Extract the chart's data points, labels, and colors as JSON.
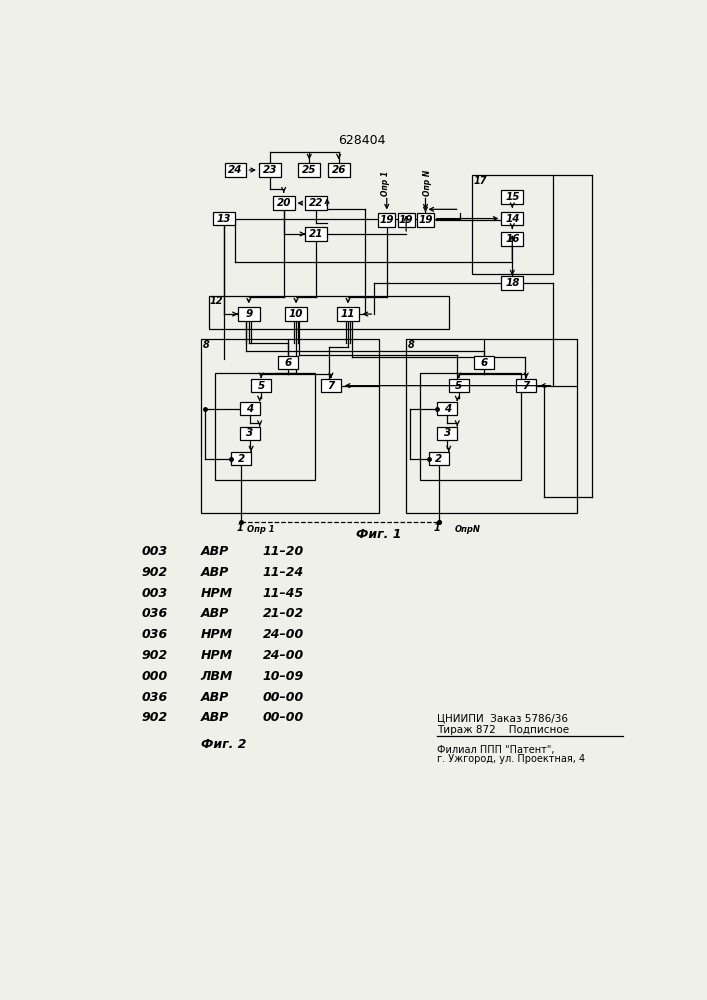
{
  "title": "628404",
  "bg": "#f0f0eb",
  "fig1_label": "Фиг. 1",
  "fig2_label": "Фиг. 2",
  "opr1_label": "Опр 1",
  "oprN_label": "Опр N",
  "dir1_label": "Опр 1",
  "dirN_label": "ОпрN",
  "node1_label": "1",
  "bottom_rows": [
    [
      "003",
      "АВР",
      "11–20"
    ],
    [
      "902",
      "АВР",
      "11–24"
    ],
    [
      "003",
      "НРМ",
      "11–45"
    ],
    [
      "036",
      "АВР",
      "21–02"
    ],
    [
      "036",
      "НРМ",
      "24–00"
    ],
    [
      "902",
      "НРМ",
      "24–00"
    ],
    [
      "000",
      "ЛВМ",
      "10–09"
    ],
    [
      "036",
      "АВР",
      "00–00"
    ],
    [
      "902",
      "АВР",
      "00–00"
    ]
  ],
  "br1": "ЦНИИПИ  Заказ 5786/36",
  "br2": "Тираж 872    Подписное",
  "br3": "Филиал ППП \"Патент\",",
  "br4": "г. Ужгород, ул. Проектная, 4"
}
